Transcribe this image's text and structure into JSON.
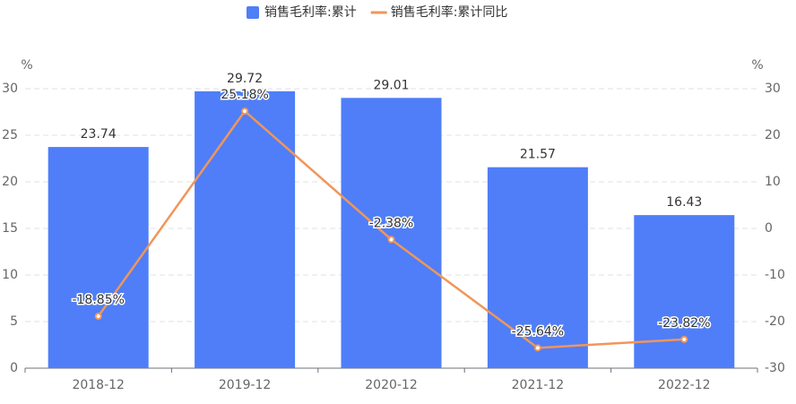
{
  "chart_data": {
    "type": "bar",
    "categories": [
      "2018-12",
      "2019-12",
      "2020-12",
      "2021-12",
      "2022-12"
    ],
    "series": [
      {
        "name": "销售毛利率:累计",
        "type": "bar",
        "color": "#4f7ef8",
        "values": [
          23.74,
          29.72,
          29.01,
          21.57,
          16.43
        ]
      },
      {
        "name": "销售毛利率:累计同比",
        "type": "line",
        "axis": "y2",
        "color": "#f0965a",
        "values": [
          -18.85,
          25.18,
          -2.38,
          -25.64,
          -23.82
        ],
        "value_labels": [
          "-18.85%",
          "25.18%",
          "-2.38%",
          "-25.64%",
          "-23.82%"
        ]
      }
    ],
    "y_label": "%",
    "y2_label": "%",
    "ylim": [
      0,
      30
    ],
    "yticks": [
      0,
      5,
      10,
      15,
      20,
      25,
      30
    ],
    "y2lim": [
      -30,
      30
    ],
    "y2ticks": [
      -30,
      -20,
      -10,
      0,
      10,
      20,
      30
    ],
    "grid": true,
    "legend": "top"
  }
}
